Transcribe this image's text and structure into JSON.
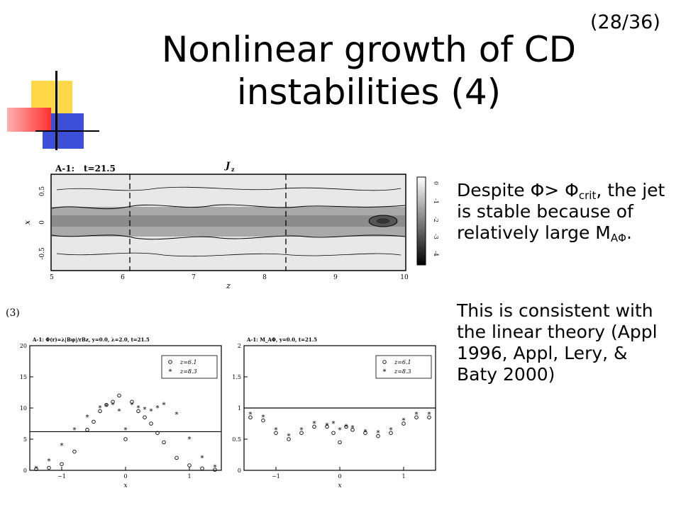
{
  "slide_number": "(28/36)",
  "title_line1": "Nonlinear growth of CD",
  "title_line2": "instabilities (4)",
  "paragraph1": {
    "part1": "Despite Φ> Φ",
    "sub1": "crit",
    "part2": ", the jet is stable because of relatively large M",
    "sub2": "AΦ",
    "part3": "."
  },
  "paragraph2": "This is consistent with the linear theory (Appl 1996, Appl, Lery, & Baty 2000)",
  "contour_plot": {
    "header_left": "A-1:",
    "header_time": "t=21.5",
    "header_var": "J",
    "header_var_sub": "z",
    "ylabel": "x",
    "xlabel": "z",
    "xticks": [
      "5",
      "6",
      "7",
      "8",
      "9",
      "10"
    ],
    "yticks": [
      "0.5",
      "0",
      "-0.5"
    ],
    "colorbar_ticks": [
      "0",
      "-1",
      "-2",
      "-3",
      "-4"
    ],
    "dashed_lines_z": [
      6.1,
      8.3
    ]
  },
  "figure_index": "(3)",
  "chart_data": [
    {
      "type": "scatter",
      "title": "A-1: Φ(r)=λ|Bφ|/rBz, y=0.0, λ=2.0, t=21.5",
      "xlabel": "x",
      "ylabel": "",
      "xlim": [
        -1.5,
        1.5
      ],
      "ylim": [
        0,
        20
      ],
      "xticks": [
        "-1",
        "0",
        "1"
      ],
      "yticks": [
        "0",
        "5",
        "10",
        "15",
        "20"
      ],
      "reference_line": 6.2,
      "legend": "top-right",
      "series": [
        {
          "name": "z=6.1",
          "marker": "circle",
          "x": [
            -1.4,
            -1.2,
            -1.0,
            -0.8,
            -0.6,
            -0.5,
            -0.4,
            -0.3,
            -0.2,
            -0.1,
            0.0,
            0.1,
            0.2,
            0.3,
            0.4,
            0.5,
            0.6,
            0.8,
            1.0,
            1.2,
            1.4
          ],
          "y": [
            0.2,
            0.4,
            1.0,
            3.0,
            6.5,
            7.8,
            9.5,
            10.5,
            11.0,
            12.0,
            5.0,
            11.0,
            9.5,
            8.5,
            7.5,
            6.0,
            4.5,
            2.0,
            0.8,
            0.3,
            0.1
          ]
        },
        {
          "name": "z=8.3",
          "marker": "star",
          "x": [
            -1.4,
            -1.2,
            -1.0,
            -0.8,
            -0.6,
            -0.4,
            -0.3,
            -0.2,
            -0.1,
            0.0,
            0.1,
            0.2,
            0.3,
            0.4,
            0.5,
            0.6,
            0.8,
            1.0,
            1.2,
            1.4
          ],
          "y": [
            0.3,
            1.5,
            4.0,
            6.5,
            8.5,
            10.0,
            10.3,
            10.5,
            9.5,
            6.5,
            10.5,
            10.0,
            9.8,
            9.5,
            10.0,
            10.5,
            9.0,
            5.0,
            2.0,
            0.5
          ]
        }
      ]
    },
    {
      "type": "scatter",
      "title": "A-1: M_AΦ, y=0.0, t=21.5",
      "xlabel": "x",
      "ylabel": "",
      "xlim": [
        -1.5,
        1.5
      ],
      "ylim": [
        0,
        2
      ],
      "xticks": [
        "-1",
        "0",
        "1"
      ],
      "yticks": [
        "0",
        "0.5",
        "1",
        "1.5",
        "2"
      ],
      "reference_line": 1.0,
      "legend": "top-right",
      "series": [
        {
          "name": "z=6.1",
          "marker": "circle",
          "x": [
            -1.4,
            -1.2,
            -1.0,
            -0.8,
            -0.6,
            -0.4,
            -0.2,
            -0.1,
            0.0,
            0.1,
            0.2,
            0.4,
            0.6,
            0.8,
            1.0,
            1.2,
            1.4
          ],
          "y": [
            0.85,
            0.8,
            0.6,
            0.5,
            0.6,
            0.7,
            0.7,
            0.6,
            0.45,
            0.7,
            0.65,
            0.6,
            0.55,
            0.6,
            0.75,
            0.85,
            0.85
          ]
        },
        {
          "name": "z=8.3",
          "marker": "star",
          "x": [
            -1.4,
            -1.2,
            -1.0,
            -0.8,
            -0.6,
            -0.4,
            -0.2,
            -0.1,
            0.0,
            0.1,
            0.2,
            0.4,
            0.6,
            0.8,
            1.0,
            1.2,
            1.4
          ],
          "y": [
            0.9,
            0.85,
            0.65,
            0.55,
            0.65,
            0.75,
            0.72,
            0.75,
            0.65,
            0.7,
            0.68,
            0.62,
            0.6,
            0.65,
            0.8,
            0.9,
            0.9
          ]
        }
      ]
    }
  ]
}
